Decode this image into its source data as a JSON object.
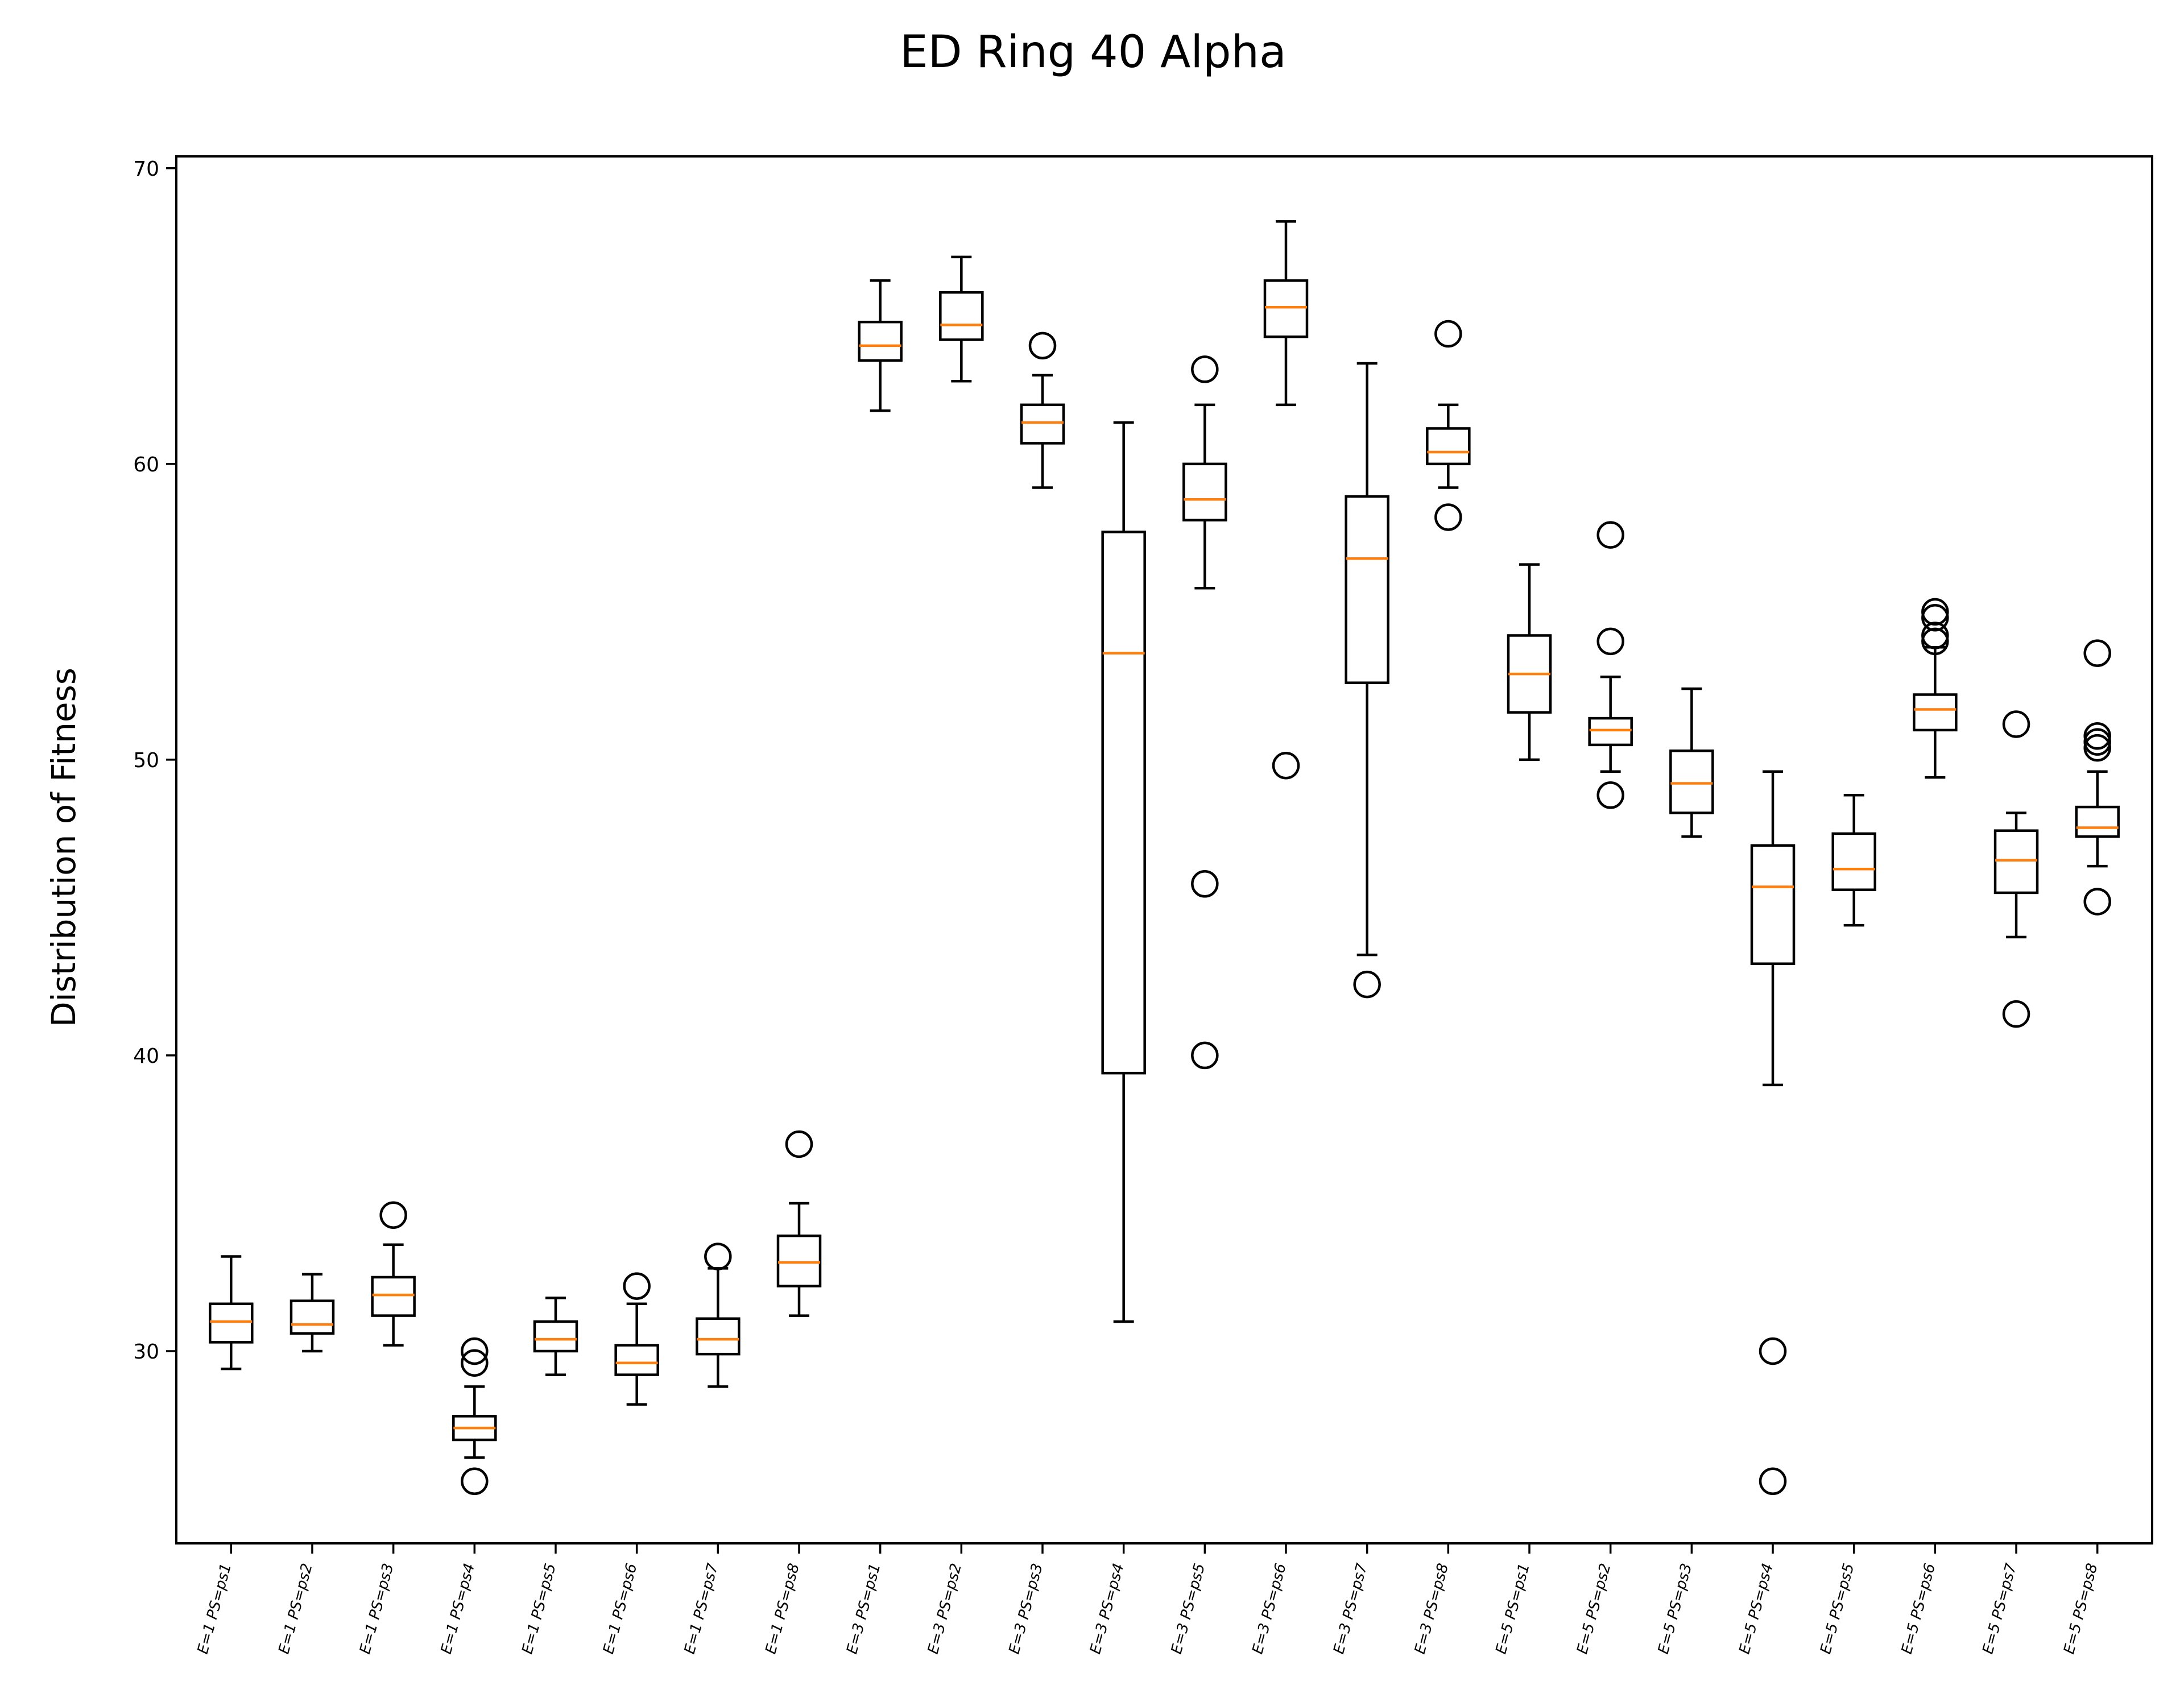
{
  "chart_data": {
    "type": "box",
    "title": "ED Ring 40 Alpha",
    "xlabel": "",
    "ylabel": "Distribution of Fitness",
    "ylim": [
      23.5,
      70.4
    ],
    "yticks": [
      30,
      40,
      50,
      60,
      70
    ],
    "grid": false,
    "colors": {
      "box": "#000000",
      "median": "#ff7f0e"
    },
    "categories": [
      "E=1 PS=ps1",
      "E=1 PS=ps2",
      "E=1 PS=ps3",
      "E=1 PS=ps4",
      "E=1 PS=ps5",
      "E=1 PS=ps6",
      "E=1 PS=ps7",
      "E=1 PS=ps8",
      "E=3 PS=ps1",
      "E=3 PS=ps2",
      "E=3 PS=ps3",
      "E=3 PS=ps4",
      "E=3 PS=ps5",
      "E=3 PS=ps6",
      "E=3 PS=ps7",
      "E=3 PS=ps8",
      "E=5 PS=ps1",
      "E=5 PS=ps2",
      "E=5 PS=ps3",
      "E=5 PS=ps4",
      "E=5 PS=ps5",
      "E=5 PS=ps6",
      "E=5 PS=ps7",
      "E=5 PS=ps8"
    ],
    "boxes": [
      {
        "whislo": 29.4,
        "q1": 30.3,
        "med": 31.0,
        "q3": 31.6,
        "whishi": 33.2,
        "fliers": []
      },
      {
        "whislo": 30.0,
        "q1": 30.6,
        "med": 30.9,
        "q3": 31.7,
        "whishi": 32.6,
        "fliers": []
      },
      {
        "whislo": 30.2,
        "q1": 31.2,
        "med": 31.9,
        "q3": 32.5,
        "whishi": 33.6,
        "fliers": [
          34.6
        ]
      },
      {
        "whislo": 26.4,
        "q1": 27.0,
        "med": 27.4,
        "q3": 27.8,
        "whishi": 28.8,
        "fliers": [
          25.6,
          29.6,
          30.0
        ]
      },
      {
        "whislo": 29.2,
        "q1": 30.0,
        "med": 30.4,
        "q3": 31.0,
        "whishi": 31.8,
        "fliers": []
      },
      {
        "whislo": 28.2,
        "q1": 29.2,
        "med": 29.6,
        "q3": 30.2,
        "whishi": 31.6,
        "fliers": [
          32.2
        ]
      },
      {
        "whislo": 28.8,
        "q1": 29.9,
        "med": 30.4,
        "q3": 31.1,
        "whishi": 32.8,
        "fliers": [
          33.2
        ]
      },
      {
        "whislo": 31.2,
        "q1": 32.2,
        "med": 33.0,
        "q3": 33.9,
        "whishi": 35.0,
        "fliers": [
          37.0
        ]
      },
      {
        "whislo": 61.8,
        "q1": 63.5,
        "med": 64.0,
        "q3": 64.8,
        "whishi": 66.2,
        "fliers": []
      },
      {
        "whislo": 62.8,
        "q1": 64.2,
        "med": 64.7,
        "q3": 65.8,
        "whishi": 67.0,
        "fliers": []
      },
      {
        "whislo": 59.2,
        "q1": 60.7,
        "med": 61.4,
        "q3": 62.0,
        "whishi": 63.0,
        "fliers": [
          64.0
        ]
      },
      {
        "whislo": 31.0,
        "q1": 39.4,
        "med": 53.6,
        "q3": 57.7,
        "whishi": 61.4,
        "fliers": []
      },
      {
        "whislo": 55.8,
        "q1": 58.1,
        "med": 58.8,
        "q3": 60.0,
        "whishi": 62.0,
        "fliers": [
          40.0,
          45.8,
          63.2
        ]
      },
      {
        "whislo": 62.0,
        "q1": 64.3,
        "med": 65.3,
        "q3": 66.2,
        "whishi": 68.2,
        "fliers": [
          49.8
        ]
      },
      {
        "whislo": 43.4,
        "q1": 52.6,
        "med": 56.8,
        "q3": 58.9,
        "whishi": 63.4,
        "fliers": [
          42.4
        ]
      },
      {
        "whislo": 59.2,
        "q1": 60.0,
        "med": 60.4,
        "q3": 61.2,
        "whishi": 62.0,
        "fliers": [
          58.2,
          64.4
        ]
      },
      {
        "whislo": 50.0,
        "q1": 51.6,
        "med": 52.9,
        "q3": 54.2,
        "whishi": 56.6,
        "fliers": []
      },
      {
        "whislo": 49.6,
        "q1": 50.5,
        "med": 51.0,
        "q3": 51.4,
        "whishi": 52.8,
        "fliers": [
          48.8,
          54.0,
          57.6
        ]
      },
      {
        "whislo": 47.4,
        "q1": 48.2,
        "med": 49.2,
        "q3": 50.3,
        "whishi": 52.4,
        "fliers": []
      },
      {
        "whislo": 39.0,
        "q1": 43.1,
        "med": 45.7,
        "q3": 47.1,
        "whishi": 49.6,
        "fliers": [
          25.6,
          30.0
        ]
      },
      {
        "whislo": 44.4,
        "q1": 45.6,
        "med": 46.3,
        "q3": 47.5,
        "whishi": 48.8,
        "fliers": []
      },
      {
        "whislo": 49.4,
        "q1": 51.0,
        "med": 51.7,
        "q3": 52.2,
        "whishi": 53.8,
        "fliers": [
          54.0,
          54.2,
          54.8,
          55.0
        ]
      },
      {
        "whislo": 44.0,
        "q1": 45.5,
        "med": 46.6,
        "q3": 47.6,
        "whishi": 48.2,
        "fliers": [
          41.4,
          51.2
        ]
      },
      {
        "whislo": 46.4,
        "q1": 47.4,
        "med": 47.7,
        "q3": 48.4,
        "whishi": 49.6,
        "fliers": [
          45.2,
          50.4,
          50.6,
          50.8,
          53.6
        ]
      }
    ]
  }
}
